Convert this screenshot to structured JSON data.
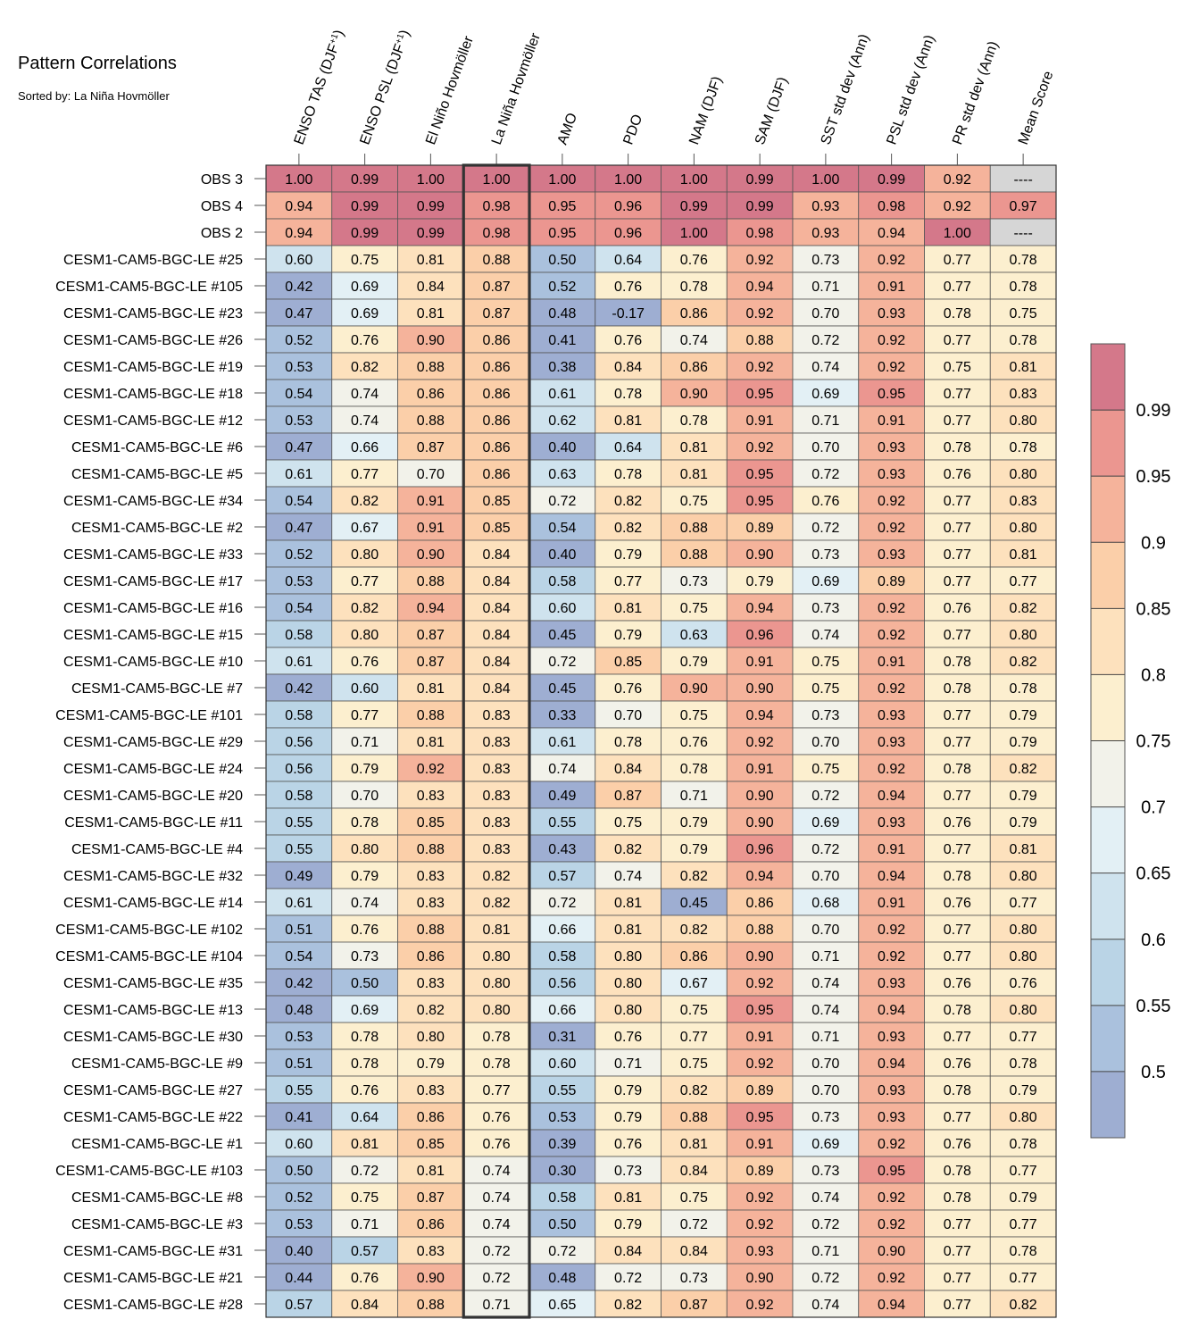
{
  "chart_data": {
    "type": "heatmap",
    "title": "Pattern Correlations",
    "subtitle": "Sorted by: La Niña Hovmöller",
    "highlighted_column": "La Niña Hovmöller",
    "columns": [
      {
        "parts": [
          [
            "ENSO TAS (DJF",
            ""
          ],
          [
            "+1",
            "sup"
          ],
          [
            ")",
            ""
          ]
        ]
      },
      {
        "parts": [
          [
            "ENSO PSL (DJF",
            ""
          ],
          [
            "+1",
            "sup"
          ],
          [
            ")",
            ""
          ]
        ]
      },
      {
        "parts": [
          [
            "El Niño Hovmöller",
            ""
          ]
        ]
      },
      {
        "parts": [
          [
            "La Niña Hovmöller",
            ""
          ]
        ]
      },
      {
        "parts": [
          [
            "AMO",
            ""
          ]
        ]
      },
      {
        "parts": [
          [
            "PDO",
            ""
          ]
        ]
      },
      {
        "parts": [
          [
            "NAM (DJF)",
            ""
          ]
        ]
      },
      {
        "parts": [
          [
            "SAM (DJF)",
            ""
          ]
        ]
      },
      {
        "parts": [
          [
            "SST std dev (Ann)",
            ""
          ]
        ]
      },
      {
        "parts": [
          [
            "PSL std dev (Ann)",
            ""
          ]
        ]
      },
      {
        "parts": [
          [
            "PR std dev (Ann)",
            ""
          ]
        ]
      },
      {
        "parts": [
          [
            "Mean Score",
            ""
          ]
        ]
      }
    ],
    "missing_label": "----",
    "rows": [
      {
        "label": "OBS 3",
        "values": [
          "1.00",
          "0.99",
          "1.00",
          "1.00",
          "1.00",
          "1.00",
          "1.00",
          "0.99",
          "1.00",
          "0.99",
          "0.92",
          null
        ]
      },
      {
        "label": "OBS 4",
        "values": [
          "0.94",
          "0.99",
          "0.99",
          "0.98",
          "0.95",
          "0.96",
          "0.99",
          "0.99",
          "0.93",
          "0.98",
          "0.92",
          "0.97"
        ]
      },
      {
        "label": "OBS 2",
        "values": [
          "0.94",
          "0.99",
          "0.99",
          "0.98",
          "0.95",
          "0.96",
          "1.00",
          "0.98",
          "0.93",
          "0.94",
          "1.00",
          null
        ]
      },
      {
        "label": "CESM1-CAM5-BGC-LE #25",
        "values": [
          "0.60",
          "0.75",
          "0.81",
          "0.88",
          "0.50",
          "0.64",
          "0.76",
          "0.92",
          "0.73",
          "0.92",
          "0.77",
          "0.78"
        ]
      },
      {
        "label": "CESM1-CAM5-BGC-LE #105",
        "values": [
          "0.42",
          "0.69",
          "0.84",
          "0.87",
          "0.52",
          "0.76",
          "0.78",
          "0.94",
          "0.71",
          "0.91",
          "0.77",
          "0.78"
        ]
      },
      {
        "label": "CESM1-CAM5-BGC-LE #23",
        "values": [
          "0.47",
          "0.69",
          "0.81",
          "0.87",
          "0.48",
          "-0.17",
          "0.86",
          "0.92",
          "0.70",
          "0.93",
          "0.78",
          "0.75"
        ]
      },
      {
        "label": "CESM1-CAM5-BGC-LE #26",
        "values": [
          "0.52",
          "0.76",
          "0.90",
          "0.86",
          "0.41",
          "0.76",
          "0.74",
          "0.88",
          "0.72",
          "0.92",
          "0.77",
          "0.78"
        ]
      },
      {
        "label": "CESM1-CAM5-BGC-LE #19",
        "values": [
          "0.53",
          "0.82",
          "0.88",
          "0.86",
          "0.38",
          "0.84",
          "0.86",
          "0.92",
          "0.74",
          "0.92",
          "0.75",
          "0.81"
        ]
      },
      {
        "label": "CESM1-CAM5-BGC-LE #18",
        "values": [
          "0.54",
          "0.74",
          "0.86",
          "0.86",
          "0.61",
          "0.78",
          "0.90",
          "0.95",
          "0.69",
          "0.95",
          "0.77",
          "0.83"
        ]
      },
      {
        "label": "CESM1-CAM5-BGC-LE #12",
        "values": [
          "0.53",
          "0.74",
          "0.88",
          "0.86",
          "0.62",
          "0.81",
          "0.78",
          "0.91",
          "0.71",
          "0.91",
          "0.77",
          "0.80"
        ]
      },
      {
        "label": "CESM1-CAM5-BGC-LE #6",
        "values": [
          "0.47",
          "0.66",
          "0.87",
          "0.86",
          "0.40",
          "0.64",
          "0.81",
          "0.92",
          "0.70",
          "0.93",
          "0.78",
          "0.78"
        ]
      },
      {
        "label": "CESM1-CAM5-BGC-LE #5",
        "values": [
          "0.61",
          "0.77",
          "0.70",
          "0.86",
          "0.63",
          "0.78",
          "0.81",
          "0.95",
          "0.72",
          "0.93",
          "0.76",
          "0.80"
        ]
      },
      {
        "label": "CESM1-CAM5-BGC-LE #34",
        "values": [
          "0.54",
          "0.82",
          "0.91",
          "0.85",
          "0.72",
          "0.82",
          "0.75",
          "0.95",
          "0.76",
          "0.92",
          "0.77",
          "0.83"
        ]
      },
      {
        "label": "CESM1-CAM5-BGC-LE #2",
        "values": [
          "0.47",
          "0.67",
          "0.91",
          "0.85",
          "0.54",
          "0.82",
          "0.88",
          "0.89",
          "0.72",
          "0.92",
          "0.77",
          "0.80"
        ]
      },
      {
        "label": "CESM1-CAM5-BGC-LE #33",
        "values": [
          "0.52",
          "0.80",
          "0.90",
          "0.84",
          "0.40",
          "0.79",
          "0.88",
          "0.90",
          "0.73",
          "0.93",
          "0.77",
          "0.81"
        ]
      },
      {
        "label": "CESM1-CAM5-BGC-LE #17",
        "values": [
          "0.53",
          "0.77",
          "0.88",
          "0.84",
          "0.58",
          "0.77",
          "0.73",
          "0.79",
          "0.69",
          "0.89",
          "0.77",
          "0.77"
        ]
      },
      {
        "label": "CESM1-CAM5-BGC-LE #16",
        "values": [
          "0.54",
          "0.82",
          "0.94",
          "0.84",
          "0.60",
          "0.81",
          "0.75",
          "0.94",
          "0.73",
          "0.92",
          "0.76",
          "0.82"
        ]
      },
      {
        "label": "CESM1-CAM5-BGC-LE #15",
        "values": [
          "0.58",
          "0.80",
          "0.87",
          "0.84",
          "0.45",
          "0.79",
          "0.63",
          "0.96",
          "0.74",
          "0.92",
          "0.77",
          "0.80"
        ]
      },
      {
        "label": "CESM1-CAM5-BGC-LE #10",
        "values": [
          "0.61",
          "0.76",
          "0.87",
          "0.84",
          "0.72",
          "0.85",
          "0.79",
          "0.91",
          "0.75",
          "0.91",
          "0.78",
          "0.82"
        ]
      },
      {
        "label": "CESM1-CAM5-BGC-LE #7",
        "values": [
          "0.42",
          "0.60",
          "0.81",
          "0.84",
          "0.45",
          "0.76",
          "0.90",
          "0.90",
          "0.75",
          "0.92",
          "0.78",
          "0.78"
        ]
      },
      {
        "label": "CESM1-CAM5-BGC-LE #101",
        "values": [
          "0.58",
          "0.77",
          "0.88",
          "0.83",
          "0.33",
          "0.70",
          "0.75",
          "0.94",
          "0.73",
          "0.93",
          "0.77",
          "0.79"
        ]
      },
      {
        "label": "CESM1-CAM5-BGC-LE #29",
        "values": [
          "0.56",
          "0.71",
          "0.81",
          "0.83",
          "0.61",
          "0.78",
          "0.76",
          "0.92",
          "0.70",
          "0.93",
          "0.77",
          "0.79"
        ]
      },
      {
        "label": "CESM1-CAM5-BGC-LE #24",
        "values": [
          "0.56",
          "0.79",
          "0.92",
          "0.83",
          "0.74",
          "0.84",
          "0.78",
          "0.91",
          "0.75",
          "0.92",
          "0.78",
          "0.82"
        ]
      },
      {
        "label": "CESM1-CAM5-BGC-LE #20",
        "values": [
          "0.58",
          "0.70",
          "0.83",
          "0.83",
          "0.49",
          "0.87",
          "0.71",
          "0.90",
          "0.72",
          "0.94",
          "0.77",
          "0.79"
        ]
      },
      {
        "label": "CESM1-CAM5-BGC-LE #11",
        "values": [
          "0.55",
          "0.78",
          "0.85",
          "0.83",
          "0.55",
          "0.75",
          "0.79",
          "0.90",
          "0.69",
          "0.93",
          "0.76",
          "0.79"
        ]
      },
      {
        "label": "CESM1-CAM5-BGC-LE #4",
        "values": [
          "0.55",
          "0.80",
          "0.88",
          "0.83",
          "0.43",
          "0.82",
          "0.79",
          "0.96",
          "0.72",
          "0.91",
          "0.77",
          "0.81"
        ]
      },
      {
        "label": "CESM1-CAM5-BGC-LE #32",
        "values": [
          "0.49",
          "0.79",
          "0.83",
          "0.82",
          "0.57",
          "0.74",
          "0.82",
          "0.94",
          "0.70",
          "0.94",
          "0.78",
          "0.80"
        ]
      },
      {
        "label": "CESM1-CAM5-BGC-LE #14",
        "values": [
          "0.61",
          "0.74",
          "0.83",
          "0.82",
          "0.72",
          "0.81",
          "0.45",
          "0.86",
          "0.68",
          "0.91",
          "0.76",
          "0.77"
        ]
      },
      {
        "label": "CESM1-CAM5-BGC-LE #102",
        "values": [
          "0.51",
          "0.76",
          "0.88",
          "0.81",
          "0.66",
          "0.81",
          "0.82",
          "0.88",
          "0.70",
          "0.92",
          "0.77",
          "0.80"
        ]
      },
      {
        "label": "CESM1-CAM5-BGC-LE #104",
        "values": [
          "0.54",
          "0.73",
          "0.86",
          "0.80",
          "0.58",
          "0.80",
          "0.86",
          "0.90",
          "0.71",
          "0.92",
          "0.77",
          "0.80"
        ]
      },
      {
        "label": "CESM1-CAM5-BGC-LE #35",
        "values": [
          "0.42",
          "0.50",
          "0.83",
          "0.80",
          "0.56",
          "0.80",
          "0.67",
          "0.92",
          "0.74",
          "0.93",
          "0.76",
          "0.76"
        ]
      },
      {
        "label": "CESM1-CAM5-BGC-LE #13",
        "values": [
          "0.48",
          "0.69",
          "0.82",
          "0.80",
          "0.66",
          "0.80",
          "0.75",
          "0.95",
          "0.74",
          "0.94",
          "0.78",
          "0.80"
        ]
      },
      {
        "label": "CESM1-CAM5-BGC-LE #30",
        "values": [
          "0.53",
          "0.78",
          "0.80",
          "0.78",
          "0.31",
          "0.76",
          "0.77",
          "0.91",
          "0.71",
          "0.93",
          "0.77",
          "0.77"
        ]
      },
      {
        "label": "CESM1-CAM5-BGC-LE #9",
        "values": [
          "0.51",
          "0.78",
          "0.79",
          "0.78",
          "0.60",
          "0.71",
          "0.75",
          "0.92",
          "0.70",
          "0.94",
          "0.76",
          "0.78"
        ]
      },
      {
        "label": "CESM1-CAM5-BGC-LE #27",
        "values": [
          "0.55",
          "0.76",
          "0.83",
          "0.77",
          "0.55",
          "0.79",
          "0.82",
          "0.89",
          "0.70",
          "0.93",
          "0.78",
          "0.79"
        ]
      },
      {
        "label": "CESM1-CAM5-BGC-LE #22",
        "values": [
          "0.41",
          "0.64",
          "0.86",
          "0.76",
          "0.53",
          "0.79",
          "0.88",
          "0.95",
          "0.73",
          "0.93",
          "0.77",
          "0.80"
        ]
      },
      {
        "label": "CESM1-CAM5-BGC-LE #1",
        "values": [
          "0.60",
          "0.81",
          "0.85",
          "0.76",
          "0.39",
          "0.76",
          "0.81",
          "0.91",
          "0.69",
          "0.92",
          "0.76",
          "0.78"
        ]
      },
      {
        "label": "CESM1-CAM5-BGC-LE #103",
        "values": [
          "0.50",
          "0.72",
          "0.81",
          "0.74",
          "0.30",
          "0.73",
          "0.84",
          "0.89",
          "0.73",
          "0.95",
          "0.78",
          "0.77"
        ]
      },
      {
        "label": "CESM1-CAM5-BGC-LE #8",
        "values": [
          "0.52",
          "0.75",
          "0.87",
          "0.74",
          "0.58",
          "0.81",
          "0.75",
          "0.92",
          "0.74",
          "0.92",
          "0.78",
          "0.79"
        ]
      },
      {
        "label": "CESM1-CAM5-BGC-LE #3",
        "values": [
          "0.53",
          "0.71",
          "0.86",
          "0.74",
          "0.50",
          "0.79",
          "0.72",
          "0.92",
          "0.72",
          "0.92",
          "0.77",
          "0.77"
        ]
      },
      {
        "label": "CESM1-CAM5-BGC-LE #31",
        "values": [
          "0.40",
          "0.57",
          "0.83",
          "0.72",
          "0.72",
          "0.84",
          "0.84",
          "0.93",
          "0.71",
          "0.90",
          "0.77",
          "0.78"
        ]
      },
      {
        "label": "CESM1-CAM5-BGC-LE #21",
        "values": [
          "0.44",
          "0.76",
          "0.90",
          "0.72",
          "0.48",
          "0.72",
          "0.73",
          "0.90",
          "0.72",
          "0.92",
          "0.77",
          "0.77"
        ]
      },
      {
        "label": "CESM1-CAM5-BGC-LE #28",
        "values": [
          "0.57",
          "0.84",
          "0.88",
          "0.71",
          "0.65",
          "0.82",
          "0.87",
          "0.92",
          "0.74",
          "0.94",
          "0.77",
          "0.82"
        ]
      }
    ],
    "colorbar": {
      "levels": [
        0.5,
        0.55,
        0.6,
        0.65,
        0.7,
        0.75,
        0.8,
        0.85,
        0.9,
        0.95,
        0.99
      ],
      "tick_labels": [
        "0.5",
        "0.55",
        "0.6",
        "0.65",
        "0.7",
        "0.75",
        "0.8",
        "0.85",
        "0.9",
        "0.95",
        "0.99"
      ],
      "colors": [
        "#9eaed2",
        "#aac1dd",
        "#bad4e6",
        "#cfe3ee",
        "#e3f0f5",
        "#f2f2ea",
        "#fcefcf",
        "#fde1bd",
        "#fbcfa9",
        "#f5b39b",
        "#eb9690",
        "#d4788a"
      ],
      "missing_color": "#d6d6d6"
    }
  }
}
